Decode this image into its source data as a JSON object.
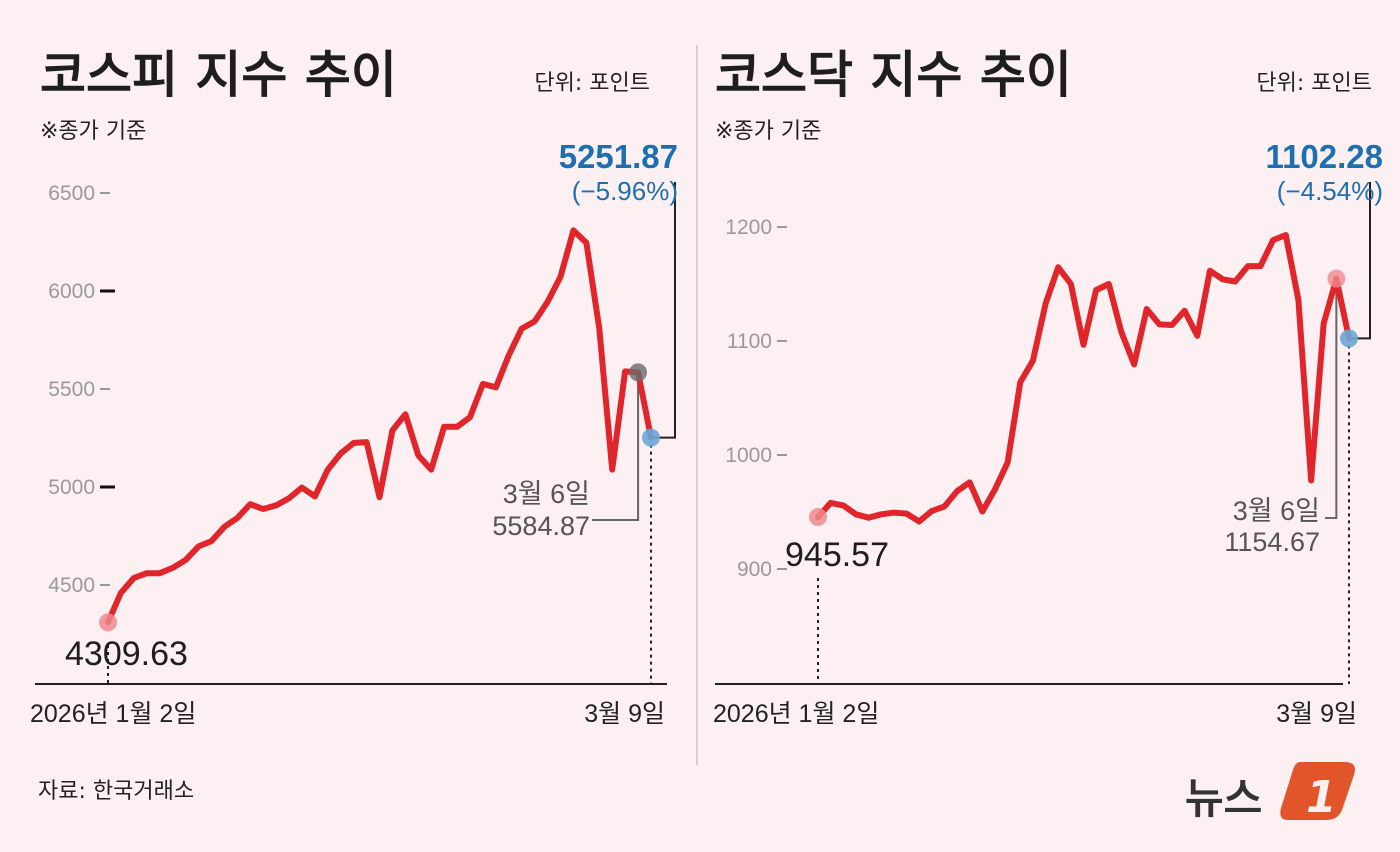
{
  "chart_data": [
    {
      "type": "line",
      "title": "코스피 지수 추이",
      "unit": "단위: 포인트",
      "note": "※종가 기준",
      "x_labels": [
        "2026년 1월 2일",
        "3월 9일"
      ],
      "yticks": [
        4500,
        5000,
        5500,
        6000,
        6500
      ],
      "ylim": [
        4200,
        6600
      ],
      "line_color": "#e0262b",
      "grid": false,
      "values": [
        4309.63,
        4460,
        4536,
        4560,
        4560,
        4587,
        4627,
        4697,
        4724,
        4797,
        4842,
        4912,
        4888,
        4906,
        4943,
        4997,
        4952,
        5089,
        5171,
        5225,
        5229,
        4948,
        5289,
        5371,
        5161,
        5089,
        5307,
        5307,
        5356,
        5526,
        5508,
        5672,
        5808,
        5845,
        5945,
        6073,
        6309,
        6246,
        5808,
        5089,
        5590,
        5584.87,
        5251.87
      ],
      "annotations": {
        "start_value": "4309.63",
        "end_value": "5251.87",
        "end_change": "(−5.96%)",
        "mid_date": "3월 6일",
        "mid_value": "5584.87"
      }
    },
    {
      "type": "line",
      "title": "코스닥 지수 추이",
      "unit": "단위: 포인트",
      "note": "※종가 기준",
      "x_labels": [
        "2026년 1월 2일",
        "3월 9일"
      ],
      "yticks": [
        900,
        1000,
        1100,
        1200
      ],
      "ylim": [
        880,
        1230
      ],
      "line_color": "#e0262b",
      "grid": false,
      "values": [
        945.57,
        958,
        955.8,
        948,
        945,
        948,
        949.5,
        948.6,
        941.7,
        951,
        954.8,
        968.3,
        976,
        950.4,
        969.9,
        993.4,
        1063.9,
        1082.7,
        1132.8,
        1164.7,
        1150,
        1096.7,
        1144.7,
        1150,
        1107.7,
        1079.5,
        1128.1,
        1114.6,
        1114,
        1126.5,
        1104.6,
        1161.6,
        1154.1,
        1152.2,
        1165.7,
        1165.7,
        1188.5,
        1193,
        1135.9,
        977.7,
        1115.5,
        1154.67,
        1102.28
      ],
      "annotations": {
        "start_value": "945.57",
        "end_value": "1102.28",
        "end_change": "(−4.54%)",
        "mid_date": "3월 6일",
        "mid_value": "1154.67"
      }
    }
  ],
  "source": "자료: 한국거래소",
  "logo": {
    "text": "뉴스",
    "mark": "1",
    "color": "#e2542a"
  },
  "colors": {
    "background": "#fcf0f3",
    "highlight": "#1e6fb0",
    "line": "#e0262b"
  }
}
